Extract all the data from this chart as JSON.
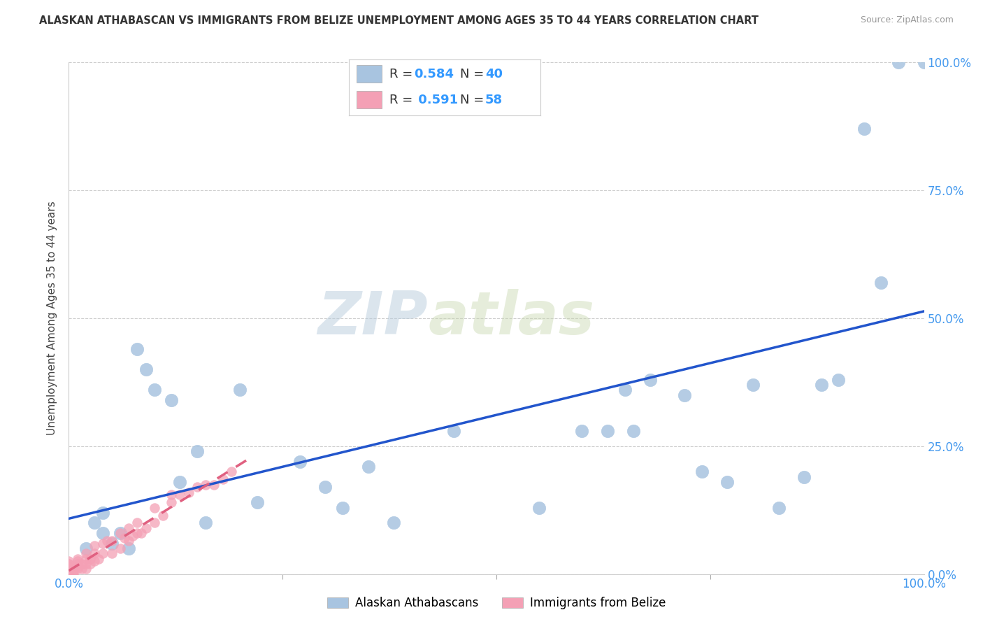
{
  "title": "ALASKAN ATHABASCAN VS IMMIGRANTS FROM BELIZE UNEMPLOYMENT AMONG AGES 35 TO 44 YEARS CORRELATION CHART",
  "source": "Source: ZipAtlas.com",
  "ylabel": "Unemployment Among Ages 35 to 44 years",
  "xmin": 0.0,
  "xmax": 1.0,
  "ymin": 0.0,
  "ymax": 1.0,
  "grid_color": "#cccccc",
  "background_color": "#ffffff",
  "watermark_zip": "ZIP",
  "watermark_atlas": "atlas",
  "blue_R": 0.584,
  "blue_N": 40,
  "pink_R": 0.591,
  "pink_N": 58,
  "blue_color": "#a8c4e0",
  "pink_color": "#f4a0b5",
  "blue_line_color": "#2255cc",
  "pink_line_color": "#e06080",
  "legend_label_blue": "Alaskan Athabascans",
  "legend_label_pink": "Immigrants from Belize",
  "blue_scatter_x": [
    0.02,
    0.03,
    0.04,
    0.04,
    0.05,
    0.06,
    0.07,
    0.08,
    0.09,
    0.1,
    0.12,
    0.13,
    0.15,
    0.16,
    0.2,
    0.22,
    0.27,
    0.3,
    0.32,
    0.35,
    0.38,
    0.45,
    0.55,
    0.6,
    0.63,
    0.65,
    0.66,
    0.68,
    0.72,
    0.74,
    0.77,
    0.8,
    0.83,
    0.86,
    0.88,
    0.9,
    0.93,
    0.95,
    0.97,
    1.0
  ],
  "blue_scatter_y": [
    0.05,
    0.1,
    0.12,
    0.08,
    0.06,
    0.08,
    0.05,
    0.44,
    0.4,
    0.36,
    0.34,
    0.18,
    0.24,
    0.1,
    0.36,
    0.14,
    0.22,
    0.17,
    0.13,
    0.21,
    0.1,
    0.28,
    0.13,
    0.28,
    0.28,
    0.36,
    0.28,
    0.38,
    0.35,
    0.2,
    0.18,
    0.37,
    0.13,
    0.19,
    0.37,
    0.38,
    0.87,
    0.57,
    1.0,
    1.0
  ],
  "pink_scatter_x": [
    0.0,
    0.0,
    0.0,
    0.0,
    0.0,
    0.0,
    0.0,
    0.0,
    0.0,
    0.0,
    0.0,
    0.005,
    0.005,
    0.005,
    0.01,
    0.01,
    0.01,
    0.01,
    0.01,
    0.015,
    0.015,
    0.02,
    0.02,
    0.02,
    0.02,
    0.025,
    0.025,
    0.03,
    0.03,
    0.03,
    0.035,
    0.04,
    0.04,
    0.045,
    0.05,
    0.05,
    0.06,
    0.06,
    0.065,
    0.07,
    0.07,
    0.075,
    0.08,
    0.08,
    0.085,
    0.09,
    0.1,
    0.1,
    0.11,
    0.12,
    0.12,
    0.13,
    0.14,
    0.15,
    0.16,
    0.17,
    0.18,
    0.19
  ],
  "pink_scatter_y": [
    0.0,
    0.0,
    0.005,
    0.005,
    0.01,
    0.01,
    0.015,
    0.015,
    0.02,
    0.02,
    0.025,
    0.0,
    0.005,
    0.01,
    0.01,
    0.015,
    0.02,
    0.025,
    0.03,
    0.01,
    0.02,
    0.01,
    0.02,
    0.03,
    0.04,
    0.02,
    0.03,
    0.025,
    0.04,
    0.055,
    0.03,
    0.04,
    0.06,
    0.065,
    0.04,
    0.065,
    0.05,
    0.08,
    0.07,
    0.065,
    0.09,
    0.075,
    0.08,
    0.1,
    0.08,
    0.09,
    0.1,
    0.13,
    0.115,
    0.14,
    0.155,
    0.155,
    0.16,
    0.17,
    0.175,
    0.175,
    0.185,
    0.2
  ],
  "blue_line_x": [
    0.0,
    1.0
  ],
  "blue_line_y": [
    0.05,
    0.5
  ],
  "pink_line_x": [
    0.0,
    0.2
  ],
  "pink_line_y": [
    0.0,
    0.18
  ]
}
